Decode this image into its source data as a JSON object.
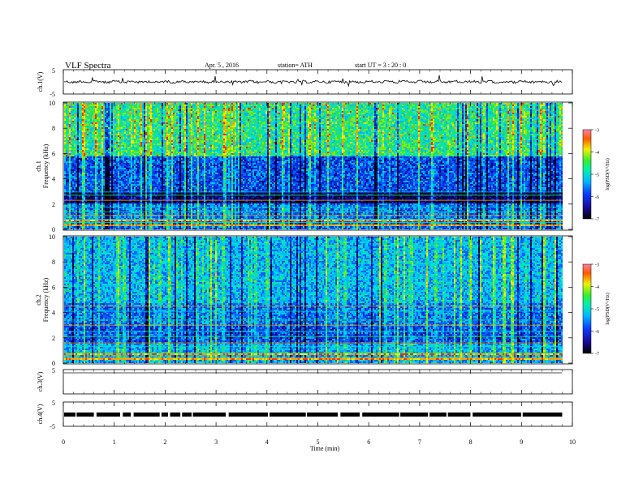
{
  "header": {
    "title": "VLF  Spectra",
    "date": "Apr. 5  , 2016",
    "station": "station= ATH",
    "start": "start  UT  =   3  : 20 : 0"
  },
  "colors": {
    "background": "#ffffff",
    "spectrogram_dark": "#000060",
    "spectrogram_low": "#0a2bd6",
    "spectrogram_mid": "#00b4ff",
    "spectrogram_green": "#22e06a",
    "spectrogram_high": "#e8f000",
    "spectrogram_peak": "#ff2a00"
  },
  "chart_data": [
    {
      "type": "line",
      "name_id": "ch1-waveform",
      "ylabel": "ch.1(V)",
      "ylim": [
        -5,
        5
      ],
      "y_ticks": [
        "5",
        "-5"
      ],
      "x_range": [
        0,
        10
      ],
      "baseline": 0,
      "description_values": {
        "mean": 0,
        "amplitude_approx": 1
      }
    },
    {
      "type": "heatmap",
      "name_id": "ch1-spectrogram",
      "ylabel": [
        "ch.1",
        "Frequency  (kHz)"
      ],
      "ylim": [
        0,
        10
      ],
      "y_ticks": [
        "0",
        "2",
        "4",
        "6",
        "8",
        "10"
      ],
      "x_range": [
        0,
        9.8
      ],
      "colorbar": {
        "label": "log(PSD(V²/Hz)",
        "ticks": [
          "-3",
          "-4",
          "-5",
          "-6",
          "-7"
        ],
        "range": [
          -7,
          -3
        ]
      }
    },
    {
      "type": "heatmap",
      "name_id": "ch2-spectrogram",
      "ylabel": [
        "ch.2",
        "Frequency  (kHz)"
      ],
      "ylim": [
        0,
        10
      ],
      "y_ticks": [
        "0",
        "2",
        "4",
        "6",
        "8",
        "10"
      ],
      "x_range": [
        0,
        9.8
      ],
      "colorbar": {
        "label": "log(PSD(V²/Hz)",
        "ticks": [
          "-3",
          "-4",
          "-5",
          "-6",
          "-7"
        ],
        "range": [
          -7,
          -3
        ]
      }
    },
    {
      "type": "line",
      "name_id": "ch3-waveform",
      "ylabel": "ch.3(V)",
      "ylim": [
        -5,
        5
      ],
      "y_ticks": [
        "5",
        "-5"
      ],
      "x_range": [
        0,
        9.8
      ],
      "baseline": 0
    },
    {
      "type": "line",
      "name_id": "ch4-waveform",
      "ylabel": "ch.4(V)",
      "ylim": [
        -5,
        5
      ],
      "y_ticks": [
        "5",
        "-5"
      ],
      "x_range": [
        0,
        9.8
      ],
      "baseline": 0
    }
  ],
  "x_axis": {
    "label": "Time  (min)",
    "ticks": [
      "0",
      "1",
      "2",
      "3",
      "4",
      "5",
      "6",
      "7",
      "8",
      "9",
      "10"
    ],
    "range": [
      0,
      10
    ]
  }
}
